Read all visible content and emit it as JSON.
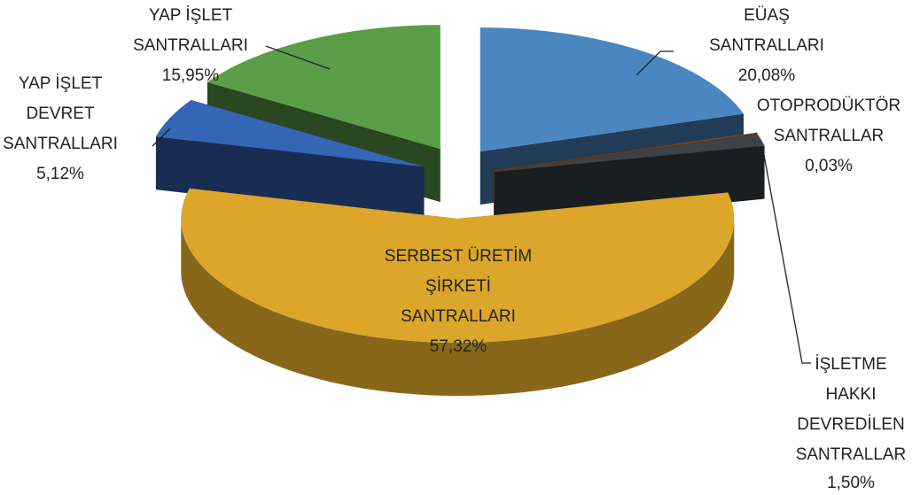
{
  "chart_data": {
    "type": "pie3d",
    "categories": [
      [
        "EÜAŞ",
        "SANTRALLARI"
      ],
      [
        "OTOPRODÜKTÖR",
        "SANTRALLAR"
      ],
      [
        "İŞLETME",
        "HAKKI",
        "DEVREDİLEN",
        "SANTRALLAR"
      ],
      [
        "SERBEST ÜRETİM",
        "ŞİRKETİ",
        "SANTRALLARI"
      ],
      [
        "YAP İŞLET",
        "DEVRET",
        "SANTRALLARI"
      ],
      [
        "YAP İŞLET",
        "SANTRALLARI"
      ]
    ],
    "values": [
      20.08,
      0.03,
      1.5,
      57.32,
      5.12,
      15.95
    ],
    "value_labels": [
      "20,08%",
      "0,03%",
      "1,50%",
      "57,32%",
      "5,12%",
      "15,95%"
    ],
    "colors": [
      "#4a86c0",
      "#e07a30",
      "#3c4248",
      "#dba62a",
      "#3565b5",
      "#5a9e48"
    ]
  }
}
